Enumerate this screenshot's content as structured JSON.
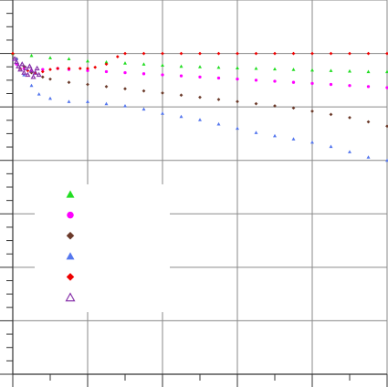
{
  "chart_data": {
    "type": "scatter",
    "title": "",
    "xlabel": "",
    "ylabel": "",
    "xlim": [
      0,
      100
    ],
    "ylim": [
      -300,
      50
    ],
    "x_major_ticks": [
      0,
      20,
      40,
      60,
      80,
      100
    ],
    "y_major_ticks": [
      -300,
      -250,
      -200,
      -150,
      -100,
      -50,
      0,
      50
    ],
    "grid": true,
    "legend": {
      "position": "left-middle",
      "labels_visible": false
    },
    "series": [
      {
        "marker": "triangle-filled",
        "color": "#22dd22",
        "x": [
          0,
          5,
          10,
          15,
          20,
          25,
          30,
          35,
          40,
          45,
          50,
          55,
          60,
          65,
          70,
          75,
          80,
          85,
          90,
          95,
          100
        ],
        "y": [
          0,
          -2,
          -4,
          -5,
          -7,
          -8,
          -9,
          -10,
          -11,
          -12,
          -12.5,
          -13,
          -13.5,
          -14,
          -14.5,
          -15,
          -15.5,
          -16,
          -16.5,
          -17,
          -17
        ]
      },
      {
        "marker": "circle",
        "color": "#ff00ff",
        "x": [
          1,
          3,
          5,
          8,
          12,
          15,
          20,
          25,
          30,
          35,
          40,
          45,
          50,
          55,
          60,
          65,
          70,
          75,
          80,
          85,
          90,
          95,
          100
        ],
        "y": [
          -10,
          -14,
          -16,
          -15,
          -14,
          -15,
          -16,
          -17,
          -18,
          -19,
          -20,
          -21,
          -22,
          -23,
          -24,
          -25,
          -26,
          -27,
          -28,
          -29,
          -30,
          -31,
          -32
        ]
      },
      {
        "marker": "diamond",
        "color": "#6b3a2a",
        "x": [
          1,
          3,
          5,
          8,
          10,
          15,
          20,
          25,
          30,
          35,
          40,
          45,
          50,
          55,
          60,
          65,
          70,
          75,
          80,
          85,
          90,
          95,
          100
        ],
        "y": [
          -5,
          -12,
          -18,
          -22,
          -24,
          -27,
          -29,
          -31,
          -33,
          -35,
          -37,
          -39,
          -41,
          -43,
          -45,
          -47,
          -49,
          -51,
          -54,
          -57,
          -60,
          -64,
          -68
        ]
      },
      {
        "marker": "triangle-filled",
        "color": "#5577ee",
        "x": [
          1,
          3,
          5,
          7,
          10,
          15,
          20,
          25,
          30,
          35,
          40,
          45,
          50,
          55,
          60,
          65,
          70,
          75,
          80,
          85,
          90,
          95,
          100
        ],
        "y": [
          -5,
          -20,
          -30,
          -38,
          -42,
          -45,
          -45,
          -47,
          -49,
          -52,
          -56,
          -59,
          -62,
          -66,
          -70,
          -74,
          -77,
          -80,
          -83,
          -87,
          -92,
          -97,
          -100
        ]
      },
      {
        "marker": "diamond",
        "color": "#ee0000",
        "x": [
          0,
          2,
          4,
          6,
          8,
          10,
          12,
          15,
          18,
          20,
          22,
          25,
          28,
          30,
          35,
          40,
          45,
          50,
          55,
          60,
          65,
          70,
          75,
          80,
          85,
          90,
          95,
          100
        ],
        "y": [
          0,
          -14,
          -16,
          -18,
          -17,
          -15,
          -14,
          -14,
          -14,
          -14,
          -13,
          -10,
          -3,
          0,
          0,
          0,
          0,
          0,
          0,
          0,
          0,
          0,
          0,
          0,
          0,
          0,
          0,
          0
        ]
      },
      {
        "marker": "triangle-open",
        "color": "#8833aa",
        "x": [
          0.5,
          1,
          1.5,
          2,
          2.5,
          3,
          3.5,
          4,
          4.5,
          5,
          5.5,
          6,
          6.5,
          7
        ],
        "y": [
          -5,
          -8,
          -12,
          -15,
          -10,
          -18,
          -14,
          -20,
          -12,
          -16,
          -22,
          -18,
          -14,
          -20
        ]
      }
    ],
    "legend_markers": [
      {
        "marker": "triangle-filled",
        "color": "#22dd22"
      },
      {
        "marker": "circle",
        "color": "#ff00ff"
      },
      {
        "marker": "diamond",
        "color": "#6b3a2a"
      },
      {
        "marker": "triangle-filled",
        "color": "#5577ee"
      },
      {
        "marker": "diamond",
        "color": "#ee0000"
      },
      {
        "marker": "triangle-open",
        "color": "#8833aa"
      }
    ]
  }
}
